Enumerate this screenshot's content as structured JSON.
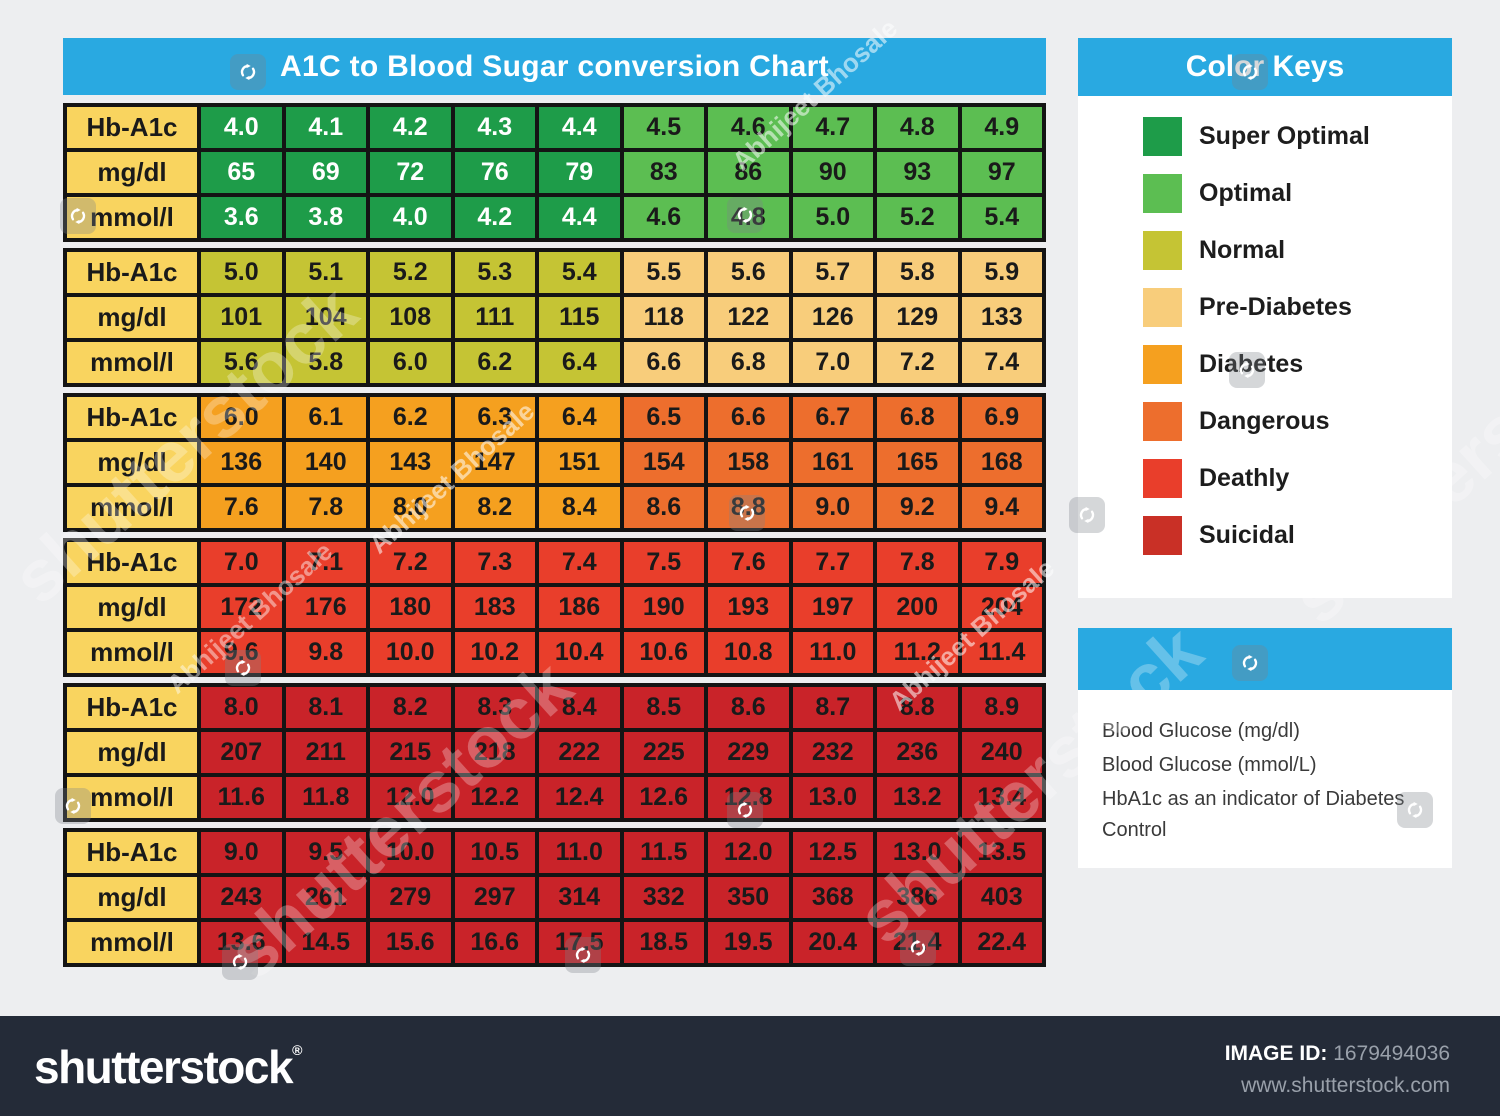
{
  "title": "A1C to Blood Sugar conversion Chart",
  "chart_data": {
    "type": "table",
    "title": "A1C to Blood Sugar conversion Chart",
    "row_labels": [
      "Hb-A1c",
      "mg/dl",
      "mmol/l"
    ],
    "label_cell_color": "#f9d45f",
    "zone_colors": {
      "super_optimal": {
        "bg": "#1e9c49",
        "text": "#ffffff"
      },
      "optimal": {
        "bg": "#5cbe52",
        "text": "#1a1a1a"
      },
      "normal": {
        "bg": "#c5c434",
        "text": "#1a1a1a"
      },
      "pre_diabetes": {
        "bg": "#f8cd7b",
        "text": "#1a1a1a"
      },
      "diabetes": {
        "bg": "#f5a01f",
        "text": "#1a1a1a"
      },
      "dangerous": {
        "bg": "#ed6e2d",
        "text": "#1a1a1a"
      },
      "deathly": {
        "bg": "#e93e2b",
        "text": "#1a1a1a"
      },
      "suicidal": {
        "bg": "#c92329",
        "text": "#1a1a1a"
      }
    },
    "blocks": [
      {
        "zones": [
          "super_optimal",
          "optimal"
        ],
        "hba1c": [
          "4.0",
          "4.1",
          "4.2",
          "4.3",
          "4.4",
          "4.5",
          "4.6",
          "4.7",
          "4.8",
          "4.9"
        ],
        "mgdl": [
          "65",
          "69",
          "72",
          "76",
          "79",
          "83",
          "86",
          "90",
          "93",
          "97"
        ],
        "mmoll": [
          "3.6",
          "3.8",
          "4.0",
          "4.2",
          "4.4",
          "4.6",
          "4.8",
          "5.0",
          "5.2",
          "5.4"
        ]
      },
      {
        "zones": [
          "normal",
          "pre_diabetes"
        ],
        "hba1c": [
          "5.0",
          "5.1",
          "5.2",
          "5.3",
          "5.4",
          "5.5",
          "5.6",
          "5.7",
          "5.8",
          "5.9"
        ],
        "mgdl": [
          "101",
          "104",
          "108",
          "111",
          "115",
          "118",
          "122",
          "126",
          "129",
          "133"
        ],
        "mmoll": [
          "5.6",
          "5.8",
          "6.0",
          "6.2",
          "6.4",
          "6.6",
          "6.8",
          "7.0",
          "7.2",
          "7.4"
        ]
      },
      {
        "zones": [
          "diabetes",
          "dangerous"
        ],
        "hba1c": [
          "6.0",
          "6.1",
          "6.2",
          "6.3",
          "6.4",
          "6.5",
          "6.6",
          "6.7",
          "6.8",
          "6.9"
        ],
        "mgdl": [
          "136",
          "140",
          "143",
          "147",
          "151",
          "154",
          "158",
          "161",
          "165",
          "168"
        ],
        "mmoll": [
          "7.6",
          "7.8",
          "8.0",
          "8.2",
          "8.4",
          "8.6",
          "8.8",
          "9.0",
          "9.2",
          "9.4"
        ]
      },
      {
        "zones": [
          "deathly",
          "deathly"
        ],
        "hba1c": [
          "7.0",
          "7.1",
          "7.2",
          "7.3",
          "7.4",
          "7.5",
          "7.6",
          "7.7",
          "7.8",
          "7.9"
        ],
        "mgdl": [
          "172",
          "176",
          "180",
          "183",
          "186",
          "190",
          "193",
          "197",
          "200",
          "204"
        ],
        "mmoll": [
          "9.6",
          "9.8",
          "10.0",
          "10.2",
          "10.4",
          "10.6",
          "10.8",
          "11.0",
          "11.2",
          "11.4"
        ]
      },
      {
        "zones": [
          "suicidal",
          "suicidal"
        ],
        "hba1c": [
          "8.0",
          "8.1",
          "8.2",
          "8.3",
          "8.4",
          "8.5",
          "8.6",
          "8.7",
          "8.8",
          "8.9"
        ],
        "mgdl": [
          "207",
          "211",
          "215",
          "218",
          "222",
          "225",
          "229",
          "232",
          "236",
          "240"
        ],
        "mmoll": [
          "11.6",
          "11.8",
          "12.0",
          "12.2",
          "12.4",
          "12.6",
          "12.8",
          "13.0",
          "13.2",
          "13.4"
        ]
      },
      {
        "zones": [
          "suicidal",
          "suicidal"
        ],
        "hba1c": [
          "9.0",
          "9.5",
          "10.0",
          "10.5",
          "11.0",
          "11.5",
          "12.0",
          "12.5",
          "13.0",
          "13.5"
        ],
        "mgdl": [
          "243",
          "261",
          "279",
          "297",
          "314",
          "332",
          "350",
          "368",
          "386",
          "403"
        ],
        "mmoll": [
          "13.6",
          "14.5",
          "15.6",
          "16.6",
          "17.5",
          "18.5",
          "19.5",
          "20.4",
          "21.4",
          "22.4"
        ]
      }
    ]
  },
  "color_keys": {
    "title": "Color Keys",
    "items": [
      {
        "label": "Super Optimal",
        "color": "#1e9c49"
      },
      {
        "label": "Optimal",
        "color": "#5cbe52"
      },
      {
        "label": "Normal",
        "color": "#c5c434"
      },
      {
        "label": "Pre-Diabetes",
        "color": "#f8cd7b"
      },
      {
        "label": "Diabetes",
        "color": "#f5a01f"
      },
      {
        "label": "Dangerous",
        "color": "#ed6e2d"
      },
      {
        "label": "Deathly",
        "color": "#e93e2b"
      },
      {
        "label": "Suicidal",
        "color": "#c93026"
      }
    ]
  },
  "info_panel": {
    "lines": [
      "Blood Glucose (mg/dl)",
      "Blood Glucose (mmol/L)",
      "HbA1c as an indicator of Diabetes Control"
    ]
  },
  "watermark": {
    "brand": "shutterstock",
    "credit": "Abhijeet Bhosale"
  },
  "footer": {
    "brand": "shutterstock",
    "registered": "®",
    "image_id_label": "IMAGE ID:",
    "image_id": "1679494036",
    "website": "www.shutterstock.com"
  },
  "theme": {
    "header_blue": "#29a9e1",
    "page_bg": "#edeef0",
    "footer_bg": "#242b38"
  }
}
